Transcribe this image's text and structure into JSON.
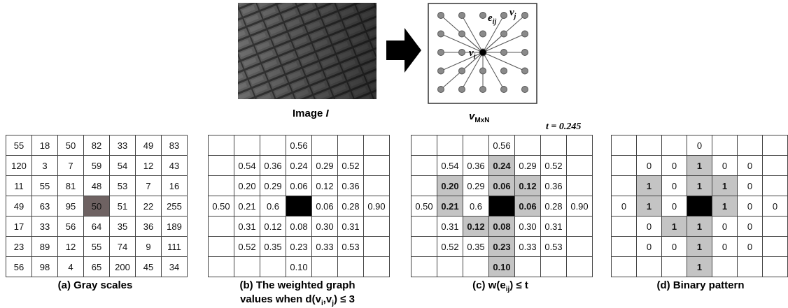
{
  "top": {
    "image_label": {
      "text": "Image ",
      "italic": "I"
    },
    "graph_label": {
      "main": "v",
      "sub": "MxN"
    },
    "node_i": {
      "main": "v",
      "sub": "i"
    },
    "node_j": {
      "main": "v",
      "sub": "j"
    },
    "edge": {
      "main": "e",
      "sub": "ij"
    }
  },
  "threshold": "t = 0.245",
  "tables": [
    {
      "caption": [
        {
          "text": "(a)  Gray scales"
        }
      ],
      "rows": [
        [
          "55",
          "18",
          "50",
          "82",
          "33",
          "49",
          "83"
        ],
        [
          "120",
          "3",
          "7",
          "59",
          "54",
          "12",
          "43"
        ],
        [
          "11",
          "55",
          "81",
          "48",
          "53",
          "7",
          "16"
        ],
        [
          "49",
          "63",
          "95",
          "50",
          "51",
          "22",
          "255"
        ],
        [
          "17",
          "33",
          "56",
          "64",
          "35",
          "36",
          "189"
        ],
        [
          "23",
          "89",
          "12",
          "55",
          "74",
          "9",
          "111"
        ],
        [
          "56",
          "98",
          "4",
          "65",
          "200",
          "45",
          "34"
        ]
      ]
    },
    {
      "caption": [
        {
          "text": "(b)  The weighted graph"
        }
      ],
      "caption2": [
        {
          "text": "values when d(v"
        },
        {
          "sub": "i"
        },
        {
          "text": ",v"
        },
        {
          "sub": "j"
        },
        {
          "text": ") ≤ 3"
        }
      ],
      "rows": [
        [
          null,
          null,
          null,
          "0.56",
          null,
          null,
          null
        ],
        [
          null,
          "0.54",
          "0.36",
          "0.24",
          "0.29",
          "0.52",
          null
        ],
        [
          null,
          "0.20",
          "0.29",
          "0.06",
          "0.12",
          "0.36",
          null
        ],
        [
          "0.50",
          "0.21",
          "0.6",
          null,
          "0.06",
          "0.28",
          "0.90"
        ],
        [
          null,
          "0.31",
          "0.12",
          "0.08",
          "0.30",
          "0.31",
          null
        ],
        [
          null,
          "0.52",
          "0.35",
          "0.23",
          "0.33",
          "0.53",
          null
        ],
        [
          null,
          null,
          null,
          "0.10",
          null,
          null,
          null
        ]
      ]
    },
    {
      "caption": [
        {
          "text": "(c)  w(e"
        },
        {
          "sub": "ij"
        },
        {
          "text": ") ≤ t"
        }
      ],
      "rows": [
        [
          null,
          null,
          null,
          "0.56",
          null,
          null,
          null
        ],
        [
          null,
          "0.54",
          "0.36",
          "0.24",
          "0.29",
          "0.52",
          null
        ],
        [
          null,
          "0.20",
          "0.29",
          "0.06",
          "0.12",
          "0.36",
          null
        ],
        [
          "0.50",
          "0.21",
          "0.6",
          null,
          "0.06",
          "0.28",
          "0.90"
        ],
        [
          null,
          "0.31",
          "0.12",
          "0.08",
          "0.30",
          "0.31",
          null
        ],
        [
          null,
          "0.52",
          "0.35",
          "0.23",
          "0.33",
          "0.53",
          null
        ],
        [
          null,
          null,
          null,
          "0.10",
          null,
          null,
          null
        ]
      ]
    },
    {
      "caption": [
        {
          "text": "(d)  Binary pattern"
        }
      ],
      "rows": [
        [
          null,
          null,
          null,
          "0",
          null,
          null,
          null
        ],
        [
          null,
          "0",
          "0",
          "1",
          "0",
          "0",
          null
        ],
        [
          null,
          "1",
          "0",
          "1",
          "1",
          "0",
          null
        ],
        [
          "0",
          "1",
          "0",
          null,
          "1",
          "0",
          "0"
        ],
        [
          null,
          "0",
          "1",
          "1",
          "0",
          "0",
          null
        ],
        [
          null,
          "0",
          "0",
          "1",
          "0",
          "0",
          null
        ],
        [
          null,
          null,
          null,
          "1",
          null,
          null,
          null
        ]
      ]
    }
  ]
}
